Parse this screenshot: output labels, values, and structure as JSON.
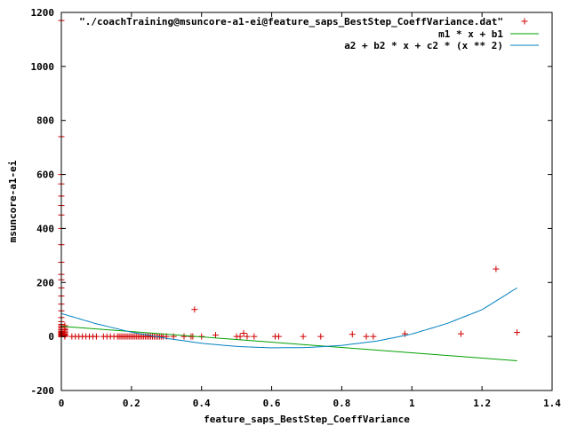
{
  "chart_data": {
    "type": "scatter",
    "title": "",
    "xlabel": "feature_saps_BestStep_CoeffVariance",
    "ylabel": "msuncore-a1-ei",
    "xlim": [
      0,
      1.4
    ],
    "ylim": [
      -200,
      1200
    ],
    "xticks": [
      "0",
      "0.2",
      "0.4",
      "0.6",
      "0.8",
      "1",
      "1.2",
      "1.4"
    ],
    "yticks": [
      "-200",
      "0",
      "200",
      "400",
      "600",
      "800",
      "1000",
      "1200"
    ],
    "grid": false,
    "legend_position": "top-right",
    "series": [
      {
        "name": "\"./coachTraining@msuncore-a1-ei@feature_saps_BestStep_CoeffVariance.dat\"",
        "kind": "points",
        "color": "#d00000",
        "marker": "plus",
        "x": [
          0,
          0,
          0,
          0,
          0,
          0,
          0,
          0,
          0,
          0,
          0,
          0,
          0,
          0,
          0,
          0,
          0,
          0,
          0,
          0,
          0,
          0,
          0,
          0,
          0,
          0,
          0,
          0,
          0,
          0,
          0,
          0,
          0,
          0,
          0,
          0,
          0,
          0,
          0,
          0,
          0.01,
          0.01,
          0.01,
          0.01,
          0.01,
          0.01,
          0.01,
          0.01,
          0.01,
          0.01,
          0.03,
          0.04,
          0.05,
          0.06,
          0.07,
          0.08,
          0.09,
          0.1,
          0.12,
          0.13,
          0.14,
          0.15,
          0.16,
          0.165,
          0.17,
          0.175,
          0.18,
          0.185,
          0.19,
          0.195,
          0.2,
          0.205,
          0.21,
          0.215,
          0.22,
          0.225,
          0.23,
          0.235,
          0.24,
          0.245,
          0.25,
          0.255,
          0.26,
          0.265,
          0.27,
          0.275,
          0.28,
          0.285,
          0.29,
          0.3,
          0.32,
          0.35,
          0.37,
          0.375,
          0.38,
          0.4,
          0.44,
          0.5,
          0.51,
          0.52,
          0.53,
          0.55,
          0.61,
          0.62,
          0.69,
          0.74,
          0.83,
          0.87,
          0.89,
          0.98,
          1.14,
          1.24,
          1.3
        ],
        "y": [
          1170,
          740,
          600,
          565,
          520,
          485,
          450,
          400,
          340,
          275,
          230,
          210,
          180,
          150,
          120,
          95,
          70,
          55,
          45,
          40,
          35,
          30,
          25,
          20,
          18,
          15,
          12,
          10,
          8,
          6,
          5,
          4,
          3,
          2,
          1,
          0,
          0,
          0,
          0,
          0,
          40,
          30,
          25,
          20,
          15,
          10,
          8,
          5,
          2,
          0,
          0,
          0,
          0,
          0,
          0,
          0,
          0,
          0,
          0,
          0,
          0,
          0,
          0,
          0,
          0,
          0,
          0,
          0,
          0,
          0,
          0,
          0,
          0,
          0,
          0,
          0,
          0,
          0,
          0,
          0,
          0,
          0,
          0,
          0,
          0,
          0,
          0,
          0,
          0,
          0,
          0,
          0,
          0,
          0,
          100,
          0,
          5,
          0,
          0,
          12,
          0,
          0,
          0,
          0,
          0,
          0,
          8,
          0,
          0,
          10,
          10,
          250,
          15
        ]
      },
      {
        "name": "m1 * x + b1",
        "kind": "line",
        "color": "#00a000",
        "x": [
          0,
          1.3
        ],
        "y": [
          38,
          -90
        ]
      },
      {
        "name": "a2 + b2 * x + c2 * (x ** 2)",
        "kind": "line",
        "color": "#0080c0",
        "x": [
          0,
          0.1,
          0.2,
          0.3,
          0.4,
          0.5,
          0.6,
          0.7,
          0.8,
          0.9,
          1.0,
          1.1,
          1.2,
          1.3
        ],
        "y": [
          85,
          47,
          16,
          -7,
          -25,
          -37,
          -42,
          -41,
          -33,
          -17,
          9,
          48,
          99,
          180
        ]
      }
    ]
  }
}
